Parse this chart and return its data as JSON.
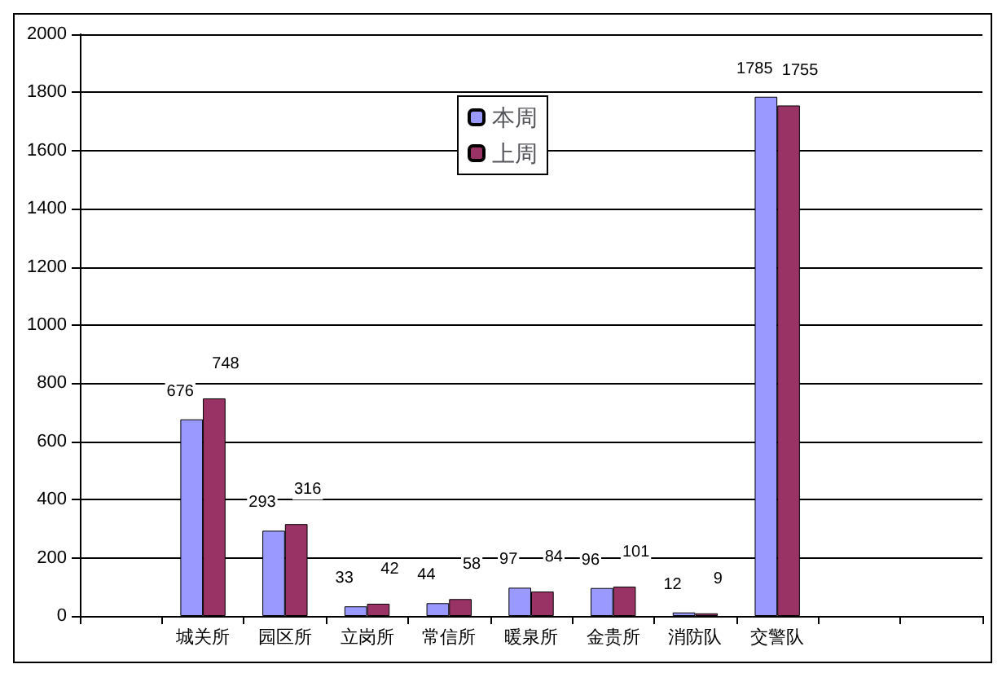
{
  "chart_data": {
    "type": "bar",
    "categories": [
      null,
      "城关所",
      "园区所",
      "立岗所",
      "常信所",
      "暖泉所",
      "金贵所",
      "消防队",
      "交警队",
      null,
      null
    ],
    "series": [
      {
        "name": "本周",
        "color": "#9999ff",
        "values": [
          null,
          676,
          293,
          33,
          44,
          97,
          96,
          12,
          1785,
          null,
          null
        ]
      },
      {
        "name": "上周",
        "color": "#993366",
        "values": [
          null,
          748,
          316,
          42,
          58,
          84,
          101,
          9,
          1755,
          null,
          null
        ]
      }
    ],
    "ylim": [
      0,
      2000
    ],
    "yticks": [
      0,
      200,
      400,
      600,
      800,
      1000,
      1200,
      1400,
      1600,
      1800,
      2000
    ],
    "grid": "y",
    "legend": "top",
    "data_labels": true
  }
}
